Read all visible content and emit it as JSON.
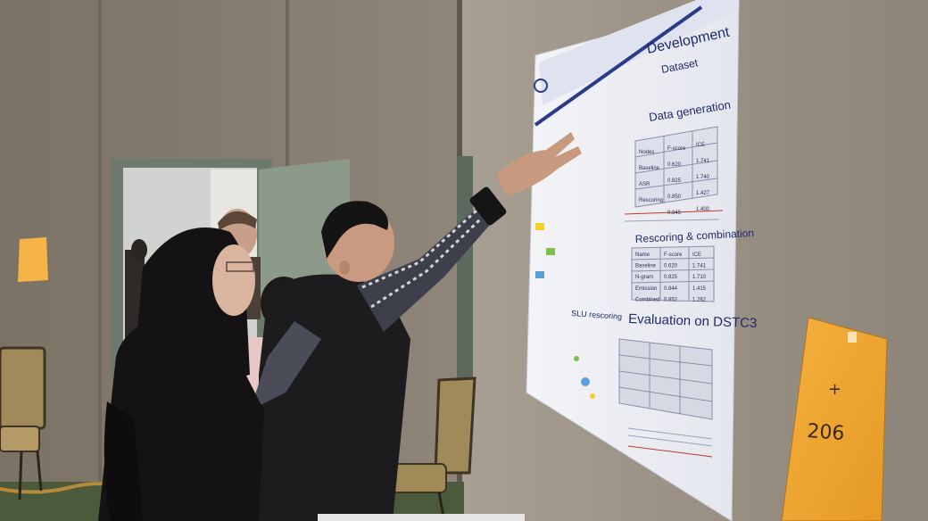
{
  "poster": {
    "sections": {
      "development": "Development",
      "dataset": "Dataset",
      "data_generation": "Data generation",
      "rescoring": "Rescoring & combination",
      "evaluation": "Evaluation on DSTC3",
      "slu_rescoring": "SLU rescoring"
    },
    "table_headers": [
      "Nodes",
      "F-score",
      "ICE"
    ],
    "table_rows": [
      [
        "Baseline",
        "0.620",
        "1.741"
      ],
      [
        "ASR",
        "0.825",
        "1.740"
      ],
      [
        "Rescoring",
        "0.850",
        "1.427"
      ],
      [
        "",
        "0.845",
        "1.400"
      ]
    ],
    "rescore_rows": [
      [
        "Name",
        "F-score",
        "ICE"
      ],
      [
        "Baseline",
        "0.620",
        "1.741"
      ],
      [
        "N-gram",
        "0.825",
        "1.710"
      ],
      [
        "Emission",
        "0.844",
        "1.415"
      ],
      [
        "Combined",
        "0.852",
        "1.262"
      ]
    ]
  },
  "envelope": {
    "number": "206",
    "mark": "+"
  },
  "colors": {
    "wall": "#8a8073",
    "door_frame": "#6d7a6d",
    "poster": "#ebeef5",
    "poster_accent": "#2c3a8c",
    "envelope": "#f0a030",
    "sticky_note": "#f5b445",
    "chair_seat": "#a18a5a",
    "carpet": "#4b5a3a"
  }
}
